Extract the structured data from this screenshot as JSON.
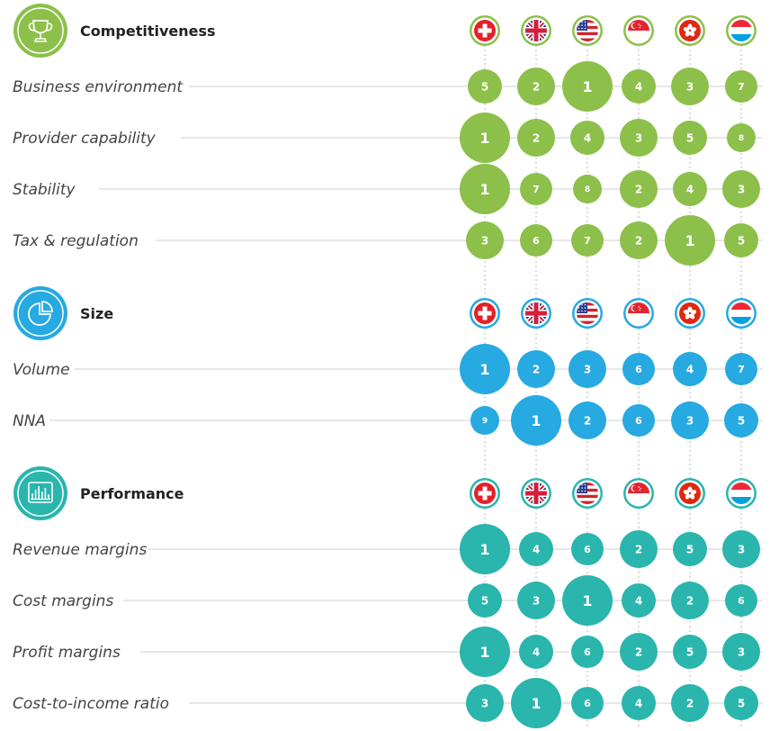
{
  "chart_data": {
    "type": "bubble-matrix",
    "columns": [
      "Switzerland",
      "United Kingdom",
      "United States",
      "Singapore",
      "Hong Kong",
      "Luxembourg"
    ],
    "colors": {
      "competitiveness": "#8cc04a",
      "size": "#27a9e1",
      "performance": "#2ab5ad"
    },
    "sections": [
      {
        "key": "competitiveness",
        "title": "Competitiveness",
        "icon": "trophy-icon",
        "rows": [
          {
            "label": "Business environment",
            "ranks": [
              5,
              2,
              1,
              4,
              3,
              7
            ]
          },
          {
            "label": "Provider capability",
            "ranks": [
              1,
              2,
              4,
              3,
              5,
              8
            ]
          },
          {
            "label": "Stability",
            "ranks": [
              1,
              7,
              8,
              2,
              4,
              3
            ]
          },
          {
            "label": "Tax & regulation",
            "ranks": [
              3,
              6,
              7,
              2,
              1,
              5
            ]
          }
        ]
      },
      {
        "key": "size",
        "title": "Size",
        "icon": "pie-chart-icon",
        "rows": [
          {
            "label": "Volume",
            "ranks": [
              1,
              2,
              3,
              6,
              4,
              7
            ]
          },
          {
            "label": "NNA",
            "ranks": [
              9,
              1,
              2,
              6,
              3,
              5
            ]
          }
        ]
      },
      {
        "key": "performance",
        "title": "Performance",
        "icon": "bar-chart-icon",
        "rows": [
          {
            "label": "Revenue margins",
            "ranks": [
              1,
              4,
              6,
              2,
              5,
              3
            ]
          },
          {
            "label": "Cost margins",
            "ranks": [
              5,
              3,
              1,
              4,
              2,
              6
            ]
          },
          {
            "label": "Profit margins",
            "ranks": [
              1,
              4,
              6,
              2,
              5,
              3
            ]
          },
          {
            "label": "Cost-to-income ratio",
            "ranks": [
              3,
              1,
              6,
              4,
              2,
              5
            ]
          }
        ]
      }
    ]
  }
}
